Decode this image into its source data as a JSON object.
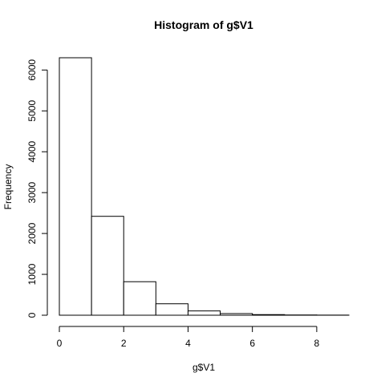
{
  "chart_data": {
    "type": "bar",
    "title": "Histogram of g$V1",
    "xlabel": "g$V1",
    "ylabel": "Frequency",
    "bins": [
      {
        "start": 0,
        "end": 1,
        "count": 6300
      },
      {
        "start": 1,
        "end": 2,
        "count": 2420
      },
      {
        "start": 2,
        "end": 3,
        "count": 820
      },
      {
        "start": 3,
        "end": 4,
        "count": 280
      },
      {
        "start": 4,
        "end": 5,
        "count": 105
      },
      {
        "start": 5,
        "end": 6,
        "count": 40
      },
      {
        "start": 6,
        "end": 7,
        "count": 15
      },
      {
        "start": 7,
        "end": 8,
        "count": 6
      },
      {
        "start": 8,
        "end": 9,
        "count": 3
      }
    ],
    "xlim": [
      0,
      9
    ],
    "ylim": [
      0,
      6300
    ],
    "x_ticks": [
      0,
      2,
      4,
      6,
      8
    ],
    "y_ticks": [
      0,
      1000,
      2000,
      3000,
      4000,
      5000,
      6000
    ],
    "grid": false,
    "legend": "none"
  }
}
